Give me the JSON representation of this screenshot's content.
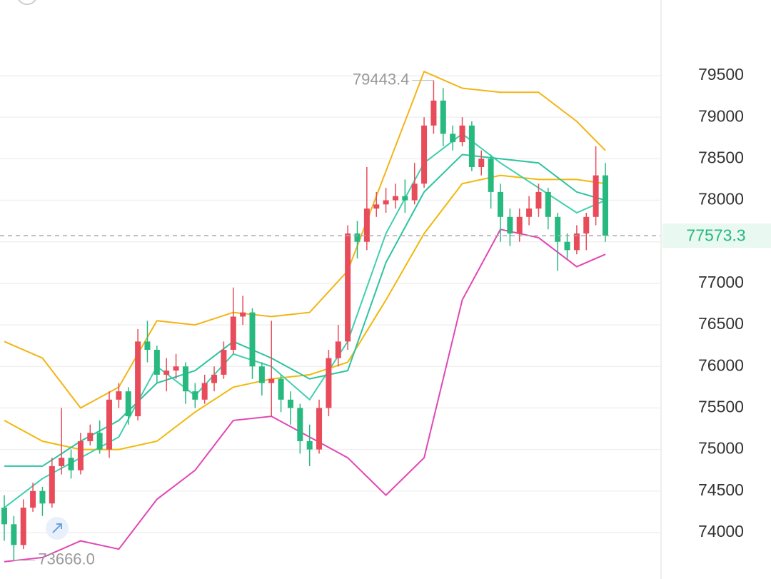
{
  "chart_data": {
    "type": "candlestick",
    "ylim": [
      73441,
      80411
    ],
    "yticks": [
      74000,
      74500,
      75000,
      75500,
      76000,
      76500,
      77000,
      77500,
      78000,
      78500,
      79000,
      79500
    ],
    "grid": true,
    "up_color": "#e84b5a",
    "down_color": "#27b97f",
    "open": [
      74300,
      74100,
      73850,
      74300,
      74500,
      74350,
      74800,
      74900,
      74750,
      75100,
      75200,
      75000,
      75600,
      75700,
      75400,
      76300,
      76200,
      75900,
      75950,
      76000,
      75700,
      75600,
      75800,
      75900,
      76200,
      76600,
      76650,
      76000,
      75800,
      75850,
      75600,
      75500,
      75100,
      75000,
      75500,
      76100,
      76300,
      77600,
      77500,
      77900,
      77950,
      78000,
      78050,
      78000,
      78200,
      78900,
      79200,
      78800,
      78700,
      78900,
      78400,
      78500,
      78100,
      77800,
      77600,
      77800,
      77900,
      78100,
      77800,
      77500,
      77400,
      77600,
      77800,
      78300
    ],
    "close": [
      74100,
      73850,
      74300,
      74500,
      74350,
      74800,
      74900,
      74750,
      75100,
      75200,
      75000,
      75600,
      75700,
      75400,
      76300,
      76200,
      75900,
      75950,
      76000,
      75700,
      75600,
      75800,
      75900,
      76200,
      76600,
      76650,
      76000,
      75800,
      75850,
      75600,
      75500,
      75100,
      75000,
      75500,
      76100,
      76300,
      77600,
      77500,
      77900,
      77950,
      78000,
      78050,
      78000,
      78200,
      78900,
      79200,
      78800,
      78700,
      78900,
      78400,
      78500,
      78100,
      77800,
      77600,
      77800,
      77900,
      78100,
      77800,
      77500,
      77400,
      77600,
      77800,
      78300,
      77573.3
    ],
    "high": [
      74450,
      74200,
      74400,
      74600,
      74550,
      74900,
      75500,
      75000,
      75200,
      75300,
      75350,
      75700,
      75800,
      75750,
      76450,
      76550,
      76250,
      76100,
      76150,
      76050,
      75800,
      75900,
      76000,
      76300,
      76950,
      76850,
      76700,
      76050,
      76550,
      75900,
      75700,
      75550,
      75300,
      75600,
      76200,
      76500,
      77700,
      77750,
      78400,
      78100,
      78150,
      78200,
      78250,
      78450,
      79000,
      79443.4,
      79350,
      78900,
      79000,
      78950,
      78600,
      78550,
      78200,
      77900,
      77900,
      78050,
      78200,
      78150,
      77850,
      77600,
      77700,
      77850,
      78650,
      78450
    ],
    "low": [
      73900,
      73666.0,
      73800,
      74250,
      74200,
      74300,
      74700,
      74650,
      74700,
      75050,
      74950,
      74900,
      75500,
      75300,
      75350,
      76050,
      75800,
      75700,
      75850,
      75550,
      75500,
      75550,
      75700,
      75850,
      76150,
      76500,
      75850,
      75650,
      75400,
      75450,
      75300,
      74950,
      74800,
      74950,
      75400,
      76000,
      76200,
      77300,
      77400,
      77800,
      77850,
      77900,
      77850,
      77950,
      78150,
      78800,
      78650,
      78600,
      78650,
      78350,
      78300,
      77900,
      77500,
      77450,
      77500,
      77700,
      77800,
      77650,
      77150,
      77300,
      77350,
      77400,
      77700,
      77500
    ],
    "lines": [
      {
        "color": "#f3b416",
        "x": [
          0,
          4,
          8,
          12,
          16,
          20,
          24,
          28,
          32,
          36,
          40,
          44,
          48,
          52,
          56,
          60,
          63
        ],
        "values": [
          76300,
          76100,
          75500,
          75750,
          76550,
          76500,
          76650,
          76600,
          76650,
          77150,
          78350,
          79550,
          79350,
          79300,
          79300,
          78950,
          78600
        ]
      },
      {
        "color": "#f0b90b",
        "x": [
          0,
          4,
          8,
          12,
          16,
          20,
          24,
          28,
          32,
          36,
          40,
          44,
          48,
          52,
          56,
          60,
          63
        ],
        "values": [
          75350,
          75100,
          75000,
          75000,
          75100,
          75450,
          75750,
          75850,
          75900,
          76050,
          76800,
          77600,
          78200,
          78300,
          78250,
          78250,
          78200
        ]
      },
      {
        "color": "#3fcfae",
        "x": [
          0,
          4,
          8,
          12,
          16,
          20,
          24,
          28,
          32,
          36,
          40,
          44,
          48,
          52,
          56,
          60,
          63
        ],
        "values": [
          74300,
          74650,
          74900,
          75150,
          76000,
          75650,
          76150,
          76000,
          75600,
          76300,
          77600,
          78450,
          78800,
          78450,
          78150,
          77850,
          78000
        ]
      },
      {
        "color": "#2cc3a0",
        "x": [
          0,
          4,
          8,
          12,
          16,
          20,
          24,
          28,
          32,
          36,
          40,
          44,
          48,
          52,
          56,
          60,
          63
        ],
        "values": [
          74800,
          74800,
          75100,
          75350,
          75800,
          75950,
          76300,
          76100,
          75850,
          75950,
          77250,
          78100,
          78550,
          78500,
          78450,
          78100,
          78000
        ]
      },
      {
        "color": "#e246b4",
        "x": [
          0,
          4,
          8,
          12,
          16,
          20,
          24,
          28,
          32,
          36,
          40,
          44,
          48,
          52,
          56,
          60,
          63
        ],
        "values": [
          73650,
          73700,
          73900,
          73800,
          74400,
          74750,
          75350,
          75400,
          75150,
          74900,
          74450,
          74900,
          76800,
          77650,
          77550,
          77200,
          77350
        ]
      }
    ],
    "high_label": "79443.4",
    "low_label": "73666.0",
    "last_price": 77573.3
  }
}
